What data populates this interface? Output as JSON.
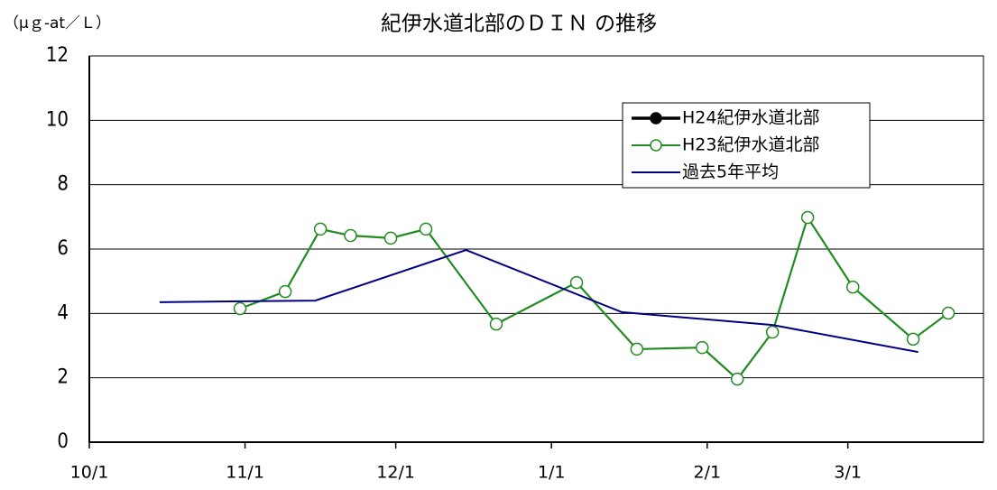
{
  "chart_data": {
    "type": "line",
    "title": "紀伊水道北部のＤＩＮ の推移",
    "y_unit": "（μｇ-at／Ｌ）",
    "xlim": [
      "10/1",
      "3/28"
    ],
    "xticks": [
      "10/1",
      "11/1",
      "12/1",
      "1/1",
      "2/1",
      "3/1"
    ],
    "ylim": [
      0,
      12
    ],
    "yticks": [
      0,
      2,
      4,
      6,
      8,
      10,
      12
    ],
    "grid": true,
    "legend": "top-right",
    "series": [
      {
        "name": "H24紀伊水道北部",
        "color": "#000000",
        "marker": "filled-circle",
        "x": [],
        "values": []
      },
      {
        "name": "H23紀伊水道北部",
        "color": "#228b22",
        "marker": "open-circle",
        "x": [
          "10/31",
          "11/9",
          "11/16",
          "11/22",
          "11/30",
          "12/7",
          "12/21",
          "1/6",
          "1/18",
          "1/31",
          "2/7",
          "2/14",
          "2/21",
          "3/2",
          "3/14",
          "3/21"
        ],
        "values": [
          4.15,
          4.68,
          6.62,
          6.42,
          6.34,
          6.62,
          3.67,
          4.96,
          2.89,
          2.94,
          1.96,
          3.42,
          6.98,
          4.82,
          3.2,
          4.01
        ]
      },
      {
        "name": "過去5年平均",
        "color": "#000080",
        "marker": "none",
        "x": [
          "10/15",
          "11/15",
          "12/15",
          "1/15",
          "2/14",
          "3/15"
        ],
        "values": [
          4.35,
          4.4,
          5.97,
          4.04,
          3.64,
          2.8
        ]
      }
    ]
  }
}
